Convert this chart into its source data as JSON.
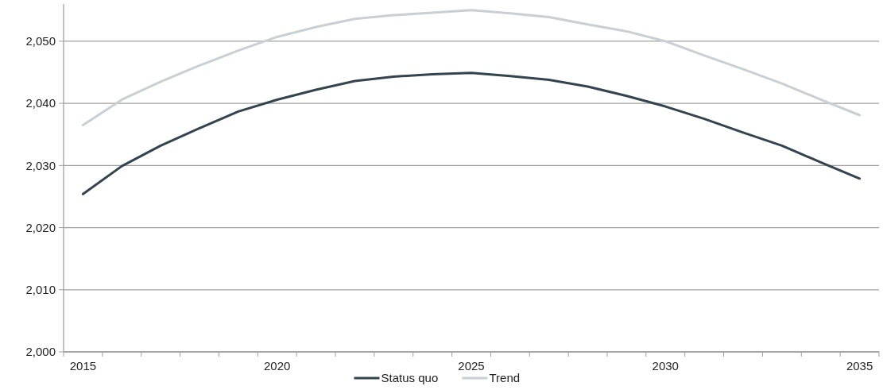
{
  "chart_data": {
    "type": "line",
    "categories": [
      "2015",
      null,
      null,
      null,
      null,
      "2020",
      null,
      null,
      null,
      null,
      "2025",
      null,
      null,
      null,
      null,
      "2030",
      null,
      null,
      null,
      null,
      "2035"
    ],
    "series": [
      {
        "name": "Status quo",
        "color": "#34444f",
        "values": [
          2025.4,
          2029.9,
          2033.2,
          2036.0,
          2038.7,
          2040.6,
          2042.2,
          2043.6,
          2044.3,
          2044.7,
          2044.9,
          2044.4,
          2043.8,
          2042.7,
          2041.2,
          2039.5,
          2037.5,
          2035.3,
          2033.2,
          2030.5,
          2027.9
        ]
      },
      {
        "name": "Trend",
        "color": "#c8d0d5",
        "values": [
          2036.5,
          2040.6,
          2043.5,
          2046.1,
          2048.5,
          2050.7,
          2052.3,
          2053.6,
          2054.2,
          2054.6,
          2055.0,
          2054.5,
          2053.9,
          2052.7,
          2051.6,
          2050.0,
          2047.7,
          2045.5,
          2043.2,
          2040.6,
          2038.1
        ]
      }
    ],
    "ylim": [
      2000,
      2056
    ],
    "yticks": [
      {
        "value": 2000,
        "label": "2,000"
      },
      {
        "value": 2010,
        "label": "2,010"
      },
      {
        "value": 2020,
        "label": "2,020"
      },
      {
        "value": 2030,
        "label": "2,030"
      },
      {
        "value": 2040,
        "label": "2,040"
      },
      {
        "value": 2050,
        "label": "2,050"
      }
    ],
    "grid": "y",
    "legend": "bottom",
    "marker": "none",
    "line_style": "solid"
  }
}
